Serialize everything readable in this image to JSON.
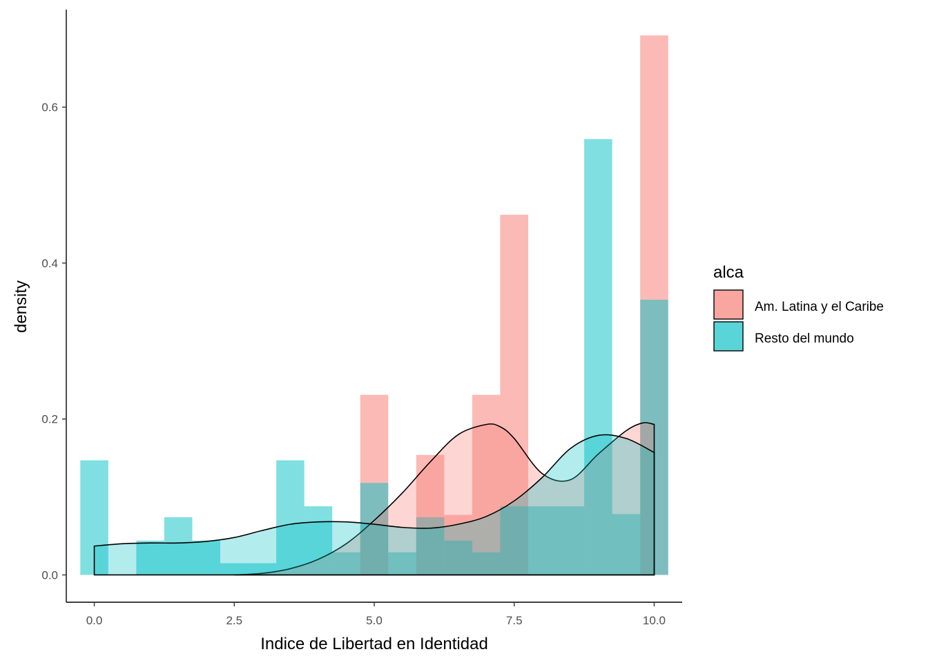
{
  "chart_data": {
    "type": "histogram",
    "xlabel": "Indice de Libertad en Identidad",
    "ylabel": "density",
    "xlim": [
      -0.5,
      10.5
    ],
    "ylim": [
      -0.035,
      0.725
    ],
    "x_ticks": [
      0,
      2.5,
      5,
      7.5,
      10
    ],
    "x_tick_labels": [
      "0.0",
      "2.5",
      "5.0",
      "7.5",
      "10.0"
    ],
    "y_ticks": [
      0,
      0.2,
      0.4,
      0.6
    ],
    "y_tick_labels": [
      "0.0",
      "0.2",
      "0.4",
      "0.6"
    ],
    "bin_width": 0.5,
    "grid": false,
    "legend_position": "right",
    "legend": {
      "title": "alca",
      "entries": [
        {
          "name": "Am. Latina y el Caribe",
          "color": "#F8766D"
        },
        {
          "name": "Resto del mundo",
          "color": "#00BFC4"
        }
      ]
    },
    "series": [
      {
        "name": "Am. Latina y el Caribe",
        "color": "#F8766D",
        "bin_centers": [
          5.0,
          6.0,
          6.5,
          7.0,
          7.5,
          10.0
        ],
        "values": [
          0.231,
          0.154,
          0.077,
          0.231,
          0.462,
          0.692
        ],
        "density_curve": {
          "x": [
            2.5,
            3.0,
            3.5,
            4.0,
            4.5,
            5.0,
            5.5,
            6.0,
            6.5,
            7.0,
            7.25,
            7.5,
            8.0,
            8.5,
            9.0,
            9.5,
            9.8,
            10.0
          ],
          "y": [
            0.0,
            0.002,
            0.008,
            0.02,
            0.04,
            0.07,
            0.105,
            0.145,
            0.18,
            0.193,
            0.19,
            0.175,
            0.13,
            0.122,
            0.155,
            0.185,
            0.195,
            0.193
          ]
        }
      },
      {
        "name": "Resto del mundo",
        "color": "#00BFC4",
        "bin_centers": [
          0.0,
          1.0,
          1.5,
          2.0,
          2.5,
          3.0,
          3.5,
          4.0,
          4.5,
          5.0,
          5.5,
          6.0,
          6.5,
          7.0,
          7.5,
          8.0,
          8.5,
          9.0,
          9.5,
          10.0
        ],
        "values": [
          0.147,
          0.044,
          0.074,
          0.044,
          0.015,
          0.015,
          0.147,
          0.088,
          0.029,
          0.118,
          0.029,
          0.074,
          0.044,
          0.029,
          0.088,
          0.088,
          0.088,
          0.559,
          0.078,
          0.353
        ],
        "density_curve": {
          "x": [
            0.0,
            0.5,
            1.0,
            1.5,
            2.0,
            2.5,
            3.0,
            3.5,
            4.0,
            4.5,
            5.0,
            5.5,
            6.0,
            6.5,
            7.0,
            7.5,
            8.0,
            8.5,
            9.0,
            9.5,
            10.0
          ],
          "y": [
            0.037,
            0.04,
            0.041,
            0.041,
            0.043,
            0.048,
            0.057,
            0.065,
            0.068,
            0.068,
            0.065,
            0.061,
            0.06,
            0.065,
            0.075,
            0.095,
            0.125,
            0.162,
            0.179,
            0.175,
            0.157
          ]
        }
      }
    ]
  }
}
